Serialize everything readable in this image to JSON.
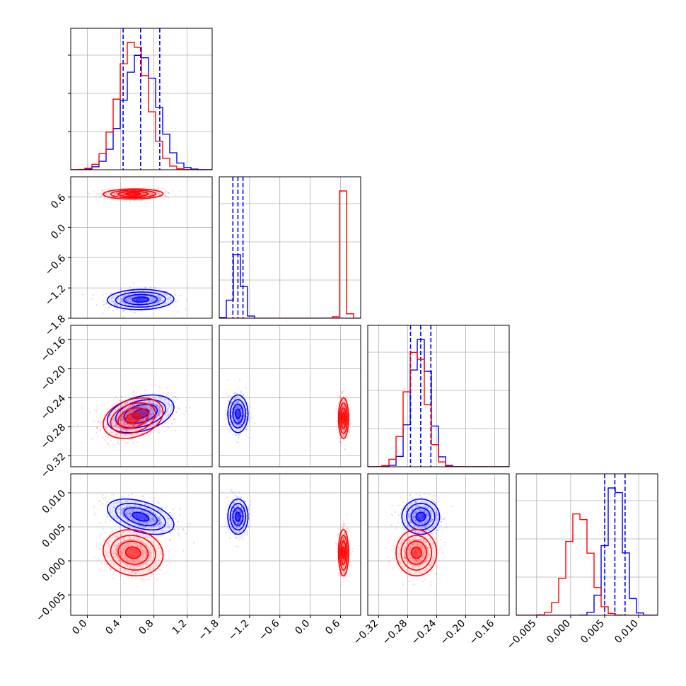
{
  "colors": {
    "series_a": "#0000ff",
    "series_b": "#ff0000",
    "grid": "#b0b0b0",
    "frame": "#000000"
  },
  "chart_data": {
    "type": "corner",
    "grid": true,
    "params": [
      {
        "range": [
          -0.2,
          1.5
        ],
        "ticks": [
          "0.0",
          "0.4",
          "0.8",
          "1.2"
        ],
        "tick_values": [
          0.0,
          0.4,
          0.8,
          1.2
        ]
      },
      {
        "range": [
          -1.8,
          1.0
        ],
        "ticks": [
          "0.6",
          "0.0",
          "−0.6",
          "−1.2",
          "−1.8"
        ],
        "tick_values": [
          0.6,
          0.0,
          -0.6,
          -1.2,
          -1.8
        ]
      },
      {
        "range": [
          -0.335,
          -0.14
        ],
        "ticks": [
          "−0.16",
          "−0.20",
          "−0.24",
          "−0.28",
          "−0.32"
        ],
        "tick_values": [
          -0.16,
          -0.2,
          -0.24,
          -0.28,
          -0.32
        ]
      },
      {
        "range": [
          -0.008,
          0.0128
        ],
        "ticks": [
          "0.010",
          "0.005",
          "0.000",
          "−0.005"
        ],
        "tick_values": [
          0.01,
          0.005,
          0.0,
          -0.005
        ]
      }
    ],
    "x_ticks": [
      {
        "labels": [
          "0.0",
          "0.4",
          "0.8",
          "1.2"
        ],
        "values": [
          0.0,
          0.4,
          0.8,
          1.2
        ]
      },
      {
        "labels": [
          "−1.8",
          "−1.2",
          "−0.6",
          "0.0",
          "0.6"
        ],
        "values": [
          -1.8,
          -1.2,
          -0.6,
          0.0,
          0.6
        ]
      },
      {
        "labels": [
          "−0.32",
          "−0.28",
          "−0.24",
          "−0.20",
          "−0.16"
        ],
        "values": [
          -0.32,
          -0.28,
          -0.24,
          -0.2,
          -0.16
        ]
      },
      {
        "labels": [
          "−0.005",
          "0.000",
          "0.005",
          "0.010"
        ],
        "values": [
          -0.005,
          0.0,
          0.005,
          0.01
        ]
      }
    ],
    "series": [
      {
        "color": "#0000ff",
        "mean": [
          0.64,
          -1.43,
          -0.262,
          0.0065
        ],
        "std": [
          0.2,
          0.1,
          0.013,
          0.0013
        ],
        "quantiles": [
          [
            0.43,
            0.64,
            0.87
          ],
          [
            -1.53,
            -1.43,
            -1.33
          ],
          [
            -0.276,
            -0.262,
            -0.248
          ],
          [
            0.005,
            0.0065,
            0.008
          ]
        ],
        "rho": {
          "0-1": 0.05,
          "0-2": 0.35,
          "0-3": -0.45,
          "1-2": 0.0,
          "1-3": 0.0,
          "2-3": 0.0
        }
      },
      {
        "color": "#ff0000",
        "mean": [
          0.55,
          0.66,
          -0.268,
          0.0012
        ],
        "std": [
          0.18,
          0.05,
          0.014,
          0.0017
        ],
        "quantiles": [],
        "rho": {
          "0-1": 0.05,
          "0-2": 0.3,
          "0-3": -0.1,
          "1-2": 0.0,
          "1-3": 0.0,
          "2-3": 0.0
        }
      }
    ]
  }
}
